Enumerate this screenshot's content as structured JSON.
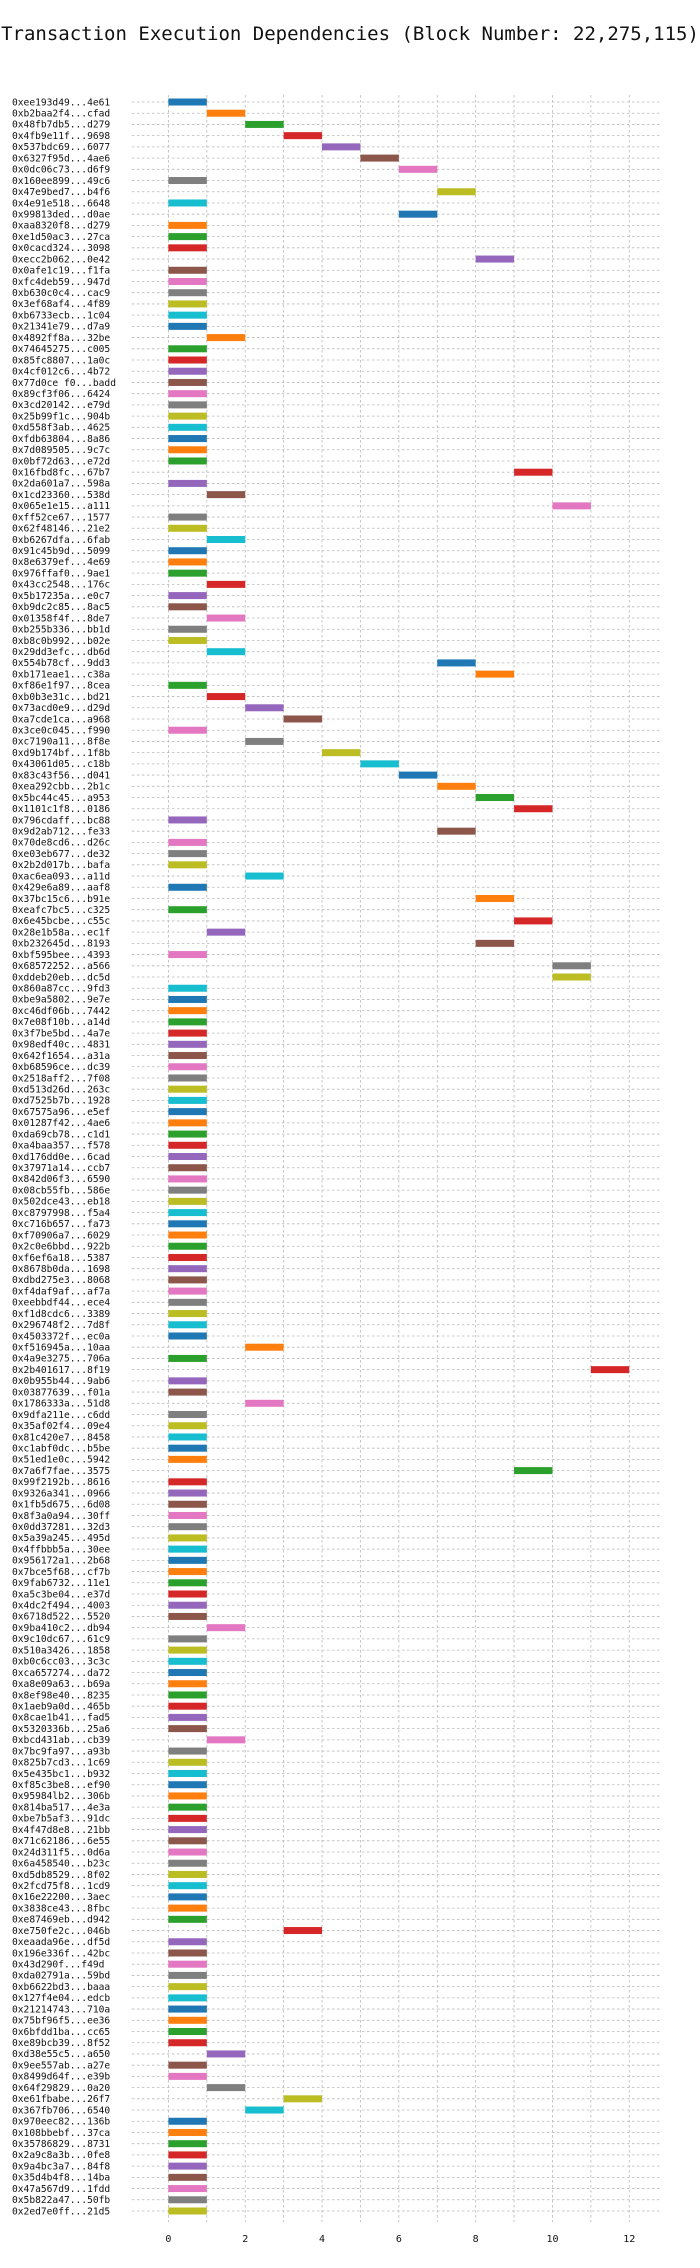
{
  "chart_data": {
    "type": "bar",
    "orientation": "horizontal-gantt",
    "title": "Transaction Execution Dependencies (Block Number: 22,275,115)",
    "xlabel": "",
    "ylabel": "",
    "xlim": [
      -1,
      12.8
    ],
    "xticks": [
      0,
      2,
      4,
      6,
      8,
      10,
      12
    ],
    "grid": true,
    "palette": [
      "#1f77b4",
      "#ff7f0e",
      "#2ca02c",
      "#d62728",
      "#9467bd",
      "#8c564b",
      "#e377c2",
      "#7f7f7f",
      "#bcbd22",
      "#17becf"
    ],
    "rows": [
      {
        "label": "0xee193d49...4e61",
        "start": 0,
        "end": 1
      },
      {
        "label": "0xb2baa2f4...cfad",
        "start": 1,
        "end": 2
      },
      {
        "label": "0x48fb7db5...d279",
        "start": 2,
        "end": 3
      },
      {
        "label": "0x4fb9e11f...9698",
        "start": 3,
        "end": 4
      },
      {
        "label": "0x537bdc69...6077",
        "start": 4,
        "end": 5
      },
      {
        "label": "0x6327f95d...4ae6",
        "start": 5,
        "end": 6
      },
      {
        "label": "0x0dc06c73...d6f9",
        "start": 6,
        "end": 7
      },
      {
        "label": "0x160ee899...49c6",
        "start": 0,
        "end": 1
      },
      {
        "label": "0x47e9bed7...b4f6",
        "start": 7,
        "end": 8
      },
      {
        "label": "0x4e91e518...6648",
        "start": 0,
        "end": 1
      },
      {
        "label": "0x99813ded...d0ae",
        "start": 6,
        "end": 7
      },
      {
        "label": "0xaa8320f8...d279",
        "start": 0,
        "end": 1
      },
      {
        "label": "0xe1d50ac3...27ca",
        "start": 0,
        "end": 1
      },
      {
        "label": "0x0cacd324...3098",
        "start": 0,
        "end": 1
      },
      {
        "label": "0xecc2b062...0e42",
        "start": 8,
        "end": 9
      },
      {
        "label": "0x0afe1c19...f1fa",
        "start": 0,
        "end": 1
      },
      {
        "label": "0xfc4deb59...947d",
        "start": 0,
        "end": 1
      },
      {
        "label": "0xb630c0c4...cac9",
        "start": 0,
        "end": 1
      },
      {
        "label": "0x3ef68af4...4f89",
        "start": 0,
        "end": 1
      },
      {
        "label": "0xb6733ecb...1c04",
        "start": 0,
        "end": 1
      },
      {
        "label": "0x21341e79...d7a9",
        "start": 0,
        "end": 1
      },
      {
        "label": "0x4892ff8a...32be",
        "start": 1,
        "end": 2
      },
      {
        "label": "0x74645275...c005",
        "start": 0,
        "end": 1
      },
      {
        "label": "0x85fc8807...1a0c",
        "start": 0,
        "end": 1
      },
      {
        "label": "0x4cf012c6...4b72",
        "start": 0,
        "end": 1
      },
      {
        "label": "0x77d0ce f0...badd",
        "start": 0,
        "end": 1
      },
      {
        "label": "0x89cf3f06...6424",
        "start": 0,
        "end": 1
      },
      {
        "label": "0x3cd20142...e79d",
        "start": 0,
        "end": 1
      },
      {
        "label": "0x25b99f1c...904b",
        "start": 0,
        "end": 1
      },
      {
        "label": "0xd558f3ab...4625",
        "start": 0,
        "end": 1
      },
      {
        "label": "0xfdb63804...8a86",
        "start": 0,
        "end": 1
      },
      {
        "label": "0x7d089505...9c7c",
        "start": 0,
        "end": 1
      },
      {
        "label": "0x0bf72d63...e72d",
        "start": 0,
        "end": 1
      },
      {
        "label": "0x16fbd8fc...67b7",
        "start": 9,
        "end": 10
      },
      {
        "label": "0x2da601a7...598a",
        "start": 0,
        "end": 1
      },
      {
        "label": "0x1cd23360...538d",
        "start": 1,
        "end": 2
      },
      {
        "label": "0x065e1e15...a111",
        "start": 10,
        "end": 11
      },
      {
        "label": "0xff52ce67...1577",
        "start": 0,
        "end": 1
      },
      {
        "label": "0x62f48146...21e2",
        "start": 0,
        "end": 1
      },
      {
        "label": "0xb6267dfa...6fab",
        "start": 1,
        "end": 2
      },
      {
        "label": "0x91c45b9d...5099",
        "start": 0,
        "end": 1
      },
      {
        "label": "0x8e6379ef...4e69",
        "start": 0,
        "end": 1
      },
      {
        "label": "0x976ffaf0...9ae1",
        "start": 0,
        "end": 1
      },
      {
        "label": "0x43cc2548...176c",
        "start": 1,
        "end": 2
      },
      {
        "label": "0x5b17235a...e0c7",
        "start": 0,
        "end": 1
      },
      {
        "label": "0xb9dc2c85...8ac5",
        "start": 0,
        "end": 1
      },
      {
        "label": "0x01358f4f...8de7",
        "start": 1,
        "end": 2
      },
      {
        "label": "0xb255b336...bb1d",
        "start": 0,
        "end": 1
      },
      {
        "label": "0xb8c0b992...b02e",
        "start": 0,
        "end": 1
      },
      {
        "label": "0x29dd3efc...db6d",
        "start": 1,
        "end": 2
      },
      {
        "label": "0x554b78cf...9dd3",
        "start": 7,
        "end": 8
      },
      {
        "label": "0xb171eae1...c38a",
        "start": 8,
        "end": 9
      },
      {
        "label": "0xf86e1f97...8cea",
        "start": 0,
        "end": 1
      },
      {
        "label": "0xb0b3e31c...bd21",
        "start": 1,
        "end": 2
      },
      {
        "label": "0x73acd0e9...d29d",
        "start": 2,
        "end": 3
      },
      {
        "label": "0xa7cde1ca...a968",
        "start": 3,
        "end": 4
      },
      {
        "label": "0x3ce0c045...f990",
        "start": 0,
        "end": 1
      },
      {
        "label": "0xc7190a11...8f8e",
        "start": 2,
        "end": 3
      },
      {
        "label": "0xd9b174bf...1f8b",
        "start": 4,
        "end": 5
      },
      {
        "label": "0x43061d05...c18b",
        "start": 5,
        "end": 6
      },
      {
        "label": "0x83c43f56...d041",
        "start": 6,
        "end": 7
      },
      {
        "label": "0xea292cbb...2b1c",
        "start": 7,
        "end": 8
      },
      {
        "label": "0x5bc44c45...a953",
        "start": 8,
        "end": 9
      },
      {
        "label": "0x1101c1f8...0186",
        "start": 9,
        "end": 10
      },
      {
        "label": "0x796cdaff...bc88",
        "start": 0,
        "end": 1
      },
      {
        "label": "0x9d2ab712...fe33",
        "start": 7,
        "end": 8
      },
      {
        "label": "0x70de8cd6...d26c",
        "start": 0,
        "end": 1
      },
      {
        "label": "0xe03eb677...de32",
        "start": 0,
        "end": 1
      },
      {
        "label": "0x2b2d017b...bafa",
        "start": 0,
        "end": 1
      },
      {
        "label": "0xac6ea093...a11d",
        "start": 2,
        "end": 3
      },
      {
        "label": "0x429e6a89...aaf8",
        "start": 0,
        "end": 1
      },
      {
        "label": "0x37bc15c6...b91e",
        "start": 8,
        "end": 9
      },
      {
        "label": "0xeafc7bc5...c325",
        "start": 0,
        "end": 1
      },
      {
        "label": "0x6e45bcbe...c55c",
        "start": 9,
        "end": 10
      },
      {
        "label": "0x28e1b58a...ec1f",
        "start": 1,
        "end": 2
      },
      {
        "label": "0xb232645d...8193",
        "start": 8,
        "end": 9
      },
      {
        "label": "0xbf595bee...4393",
        "start": 0,
        "end": 1
      },
      {
        "label": "0x68572252...a566",
        "start": 10,
        "end": 11
      },
      {
        "label": "0xddeb20eb...dc5d",
        "start": 10,
        "end": 11
      },
      {
        "label": "0x860a87cc...9fd3",
        "start": 0,
        "end": 1
      },
      {
        "label": "0xbe9a5802...9e7e",
        "start": 0,
        "end": 1
      },
      {
        "label": "0xc46df06b...7442",
        "start": 0,
        "end": 1
      },
      {
        "label": "0x7e08f10b...a14d",
        "start": 0,
        "end": 1
      },
      {
        "label": "0x3f7be5bd...4a7e",
        "start": 0,
        "end": 1
      },
      {
        "label": "0x98edf40c...4831",
        "start": 0,
        "end": 1
      },
      {
        "label": "0x642f1654...a31a",
        "start": 0,
        "end": 1
      },
      {
        "label": "0xb68596ce...dc39",
        "start": 0,
        "end": 1
      },
      {
        "label": "0x2518aff2...7f08",
        "start": 0,
        "end": 1
      },
      {
        "label": "0xd513d26d...263c",
        "start": 0,
        "end": 1
      },
      {
        "label": "0xd7525b7b...1928",
        "start": 0,
        "end": 1
      },
      {
        "label": "0x67575a96...e5ef",
        "start": 0,
        "end": 1
      },
      {
        "label": "0x01287f42...4ae6",
        "start": 0,
        "end": 1
      },
      {
        "label": "0xda69cb78...c1d1",
        "start": 0,
        "end": 1
      },
      {
        "label": "0xa4baa357...f578",
        "start": 0,
        "end": 1
      },
      {
        "label": "0xd176dd0e...6cad",
        "start": 0,
        "end": 1
      },
      {
        "label": "0x37971a14...ccb7",
        "start": 0,
        "end": 1
      },
      {
        "label": "0x842d06f3...6590",
        "start": 0,
        "end": 1
      },
      {
        "label": "0x08cb55fb...586e",
        "start": 0,
        "end": 1
      },
      {
        "label": "0x502dce43...eb18",
        "start": 0,
        "end": 1
      },
      {
        "label": "0xc8797998...f5a4",
        "start": 0,
        "end": 1
      },
      {
        "label": "0xc716b657...fa73",
        "start": 0,
        "end": 1
      },
      {
        "label": "0xf70906a7...6029",
        "start": 0,
        "end": 1
      },
      {
        "label": "0x2c0e6bbd...922b",
        "start": 0,
        "end": 1
      },
      {
        "label": "0xf6ef6a18...5387",
        "start": 0,
        "end": 1
      },
      {
        "label": "0x8678b0da...1698",
        "start": 0,
        "end": 1
      },
      {
        "label": "0xdbd275e3...8068",
        "start": 0,
        "end": 1
      },
      {
        "label": "0xf4daf9af...af7a",
        "start": 0,
        "end": 1
      },
      {
        "label": "0xeebbdf44...ece4",
        "start": 0,
        "end": 1
      },
      {
        "label": "0xf1d8cdc6...3389",
        "start": 0,
        "end": 1
      },
      {
        "label": "0x296748f2...7d8f",
        "start": 0,
        "end": 1
      },
      {
        "label": "0x4503372f...ec0a",
        "start": 0,
        "end": 1
      },
      {
        "label": "0xf516945a...10aa",
        "start": 2,
        "end": 3
      },
      {
        "label": "0x4a9e3275...706a",
        "start": 0,
        "end": 1
      },
      {
        "label": "0x2b401617...8f19",
        "start": 11,
        "end": 12
      },
      {
        "label": "0x0b955b44...9ab6",
        "start": 0,
        "end": 1
      },
      {
        "label": "0x03877639...f01a",
        "start": 0,
        "end": 1
      },
      {
        "label": "0x1786333a...51d8",
        "start": 2,
        "end": 3
      },
      {
        "label": "0x9dfa211e...c6dd",
        "start": 0,
        "end": 1
      },
      {
        "label": "0x35af02f4...09e4",
        "start": 0,
        "end": 1
      },
      {
        "label": "0x81c420e7...8458",
        "start": 0,
        "end": 1
      },
      {
        "label": "0xc1abf0dc...b5be",
        "start": 0,
        "end": 1
      },
      {
        "label": "0x51ed1e0c...5942",
        "start": 0,
        "end": 1
      },
      {
        "label": "0x7a6f7fae...3575",
        "start": 9,
        "end": 10
      },
      {
        "label": "0x99f2192b...8616",
        "start": 0,
        "end": 1
      },
      {
        "label": "0x9326a341...0966",
        "start": 0,
        "end": 1
      },
      {
        "label": "0x1fb5d675...6d08",
        "start": 0,
        "end": 1
      },
      {
        "label": "0x8f3a0a94...30ff",
        "start": 0,
        "end": 1
      },
      {
        "label": "0x0dd37281...32d3",
        "start": 0,
        "end": 1
      },
      {
        "label": "0x5a39a245...495d",
        "start": 0,
        "end": 1
      },
      {
        "label": "0x4ffbbb5a...30ee",
        "start": 0,
        "end": 1
      },
      {
        "label": "0x956172a1...2b68",
        "start": 0,
        "end": 1
      },
      {
        "label": "0x7bce5f68...cf7b",
        "start": 0,
        "end": 1
      },
      {
        "label": "0x9fab6732...11e1",
        "start": 0,
        "end": 1
      },
      {
        "label": "0xa5c3be04...e37d",
        "start": 0,
        "end": 1
      },
      {
        "label": "0x4dc2f494...4003",
        "start": 0,
        "end": 1
      },
      {
        "label": "0x6718d522...5520",
        "start": 0,
        "end": 1
      },
      {
        "label": "0x9ba410c2...db94",
        "start": 1,
        "end": 2
      },
      {
        "label": "0x9c10dc67...61c9",
        "start": 0,
        "end": 1
      },
      {
        "label": "0x510a3426...1858",
        "start": 0,
        "end": 1
      },
      {
        "label": "0xb0c6cc03...3c3c",
        "start": 0,
        "end": 1
      },
      {
        "label": "0xca657274...da72",
        "start": 0,
        "end": 1
      },
      {
        "label": "0xa8e09a63...b69a",
        "start": 0,
        "end": 1
      },
      {
        "label": "0x8ef98e40...8235",
        "start": 0,
        "end": 1
      },
      {
        "label": "0x1aeb9a0d...465b",
        "start": 0,
        "end": 1
      },
      {
        "label": "0x8cae1b41...fad5",
        "start": 0,
        "end": 1
      },
      {
        "label": "0x5320336b...25a6",
        "start": 0,
        "end": 1
      },
      {
        "label": "0xbcd431ab...cb39",
        "start": 1,
        "end": 2
      },
      {
        "label": "0x7bc9fa97...a93b",
        "start": 0,
        "end": 1
      },
      {
        "label": "0x825b7cd3...1c69",
        "start": 0,
        "end": 1
      },
      {
        "label": "0x5e435bc1...b932",
        "start": 0,
        "end": 1
      },
      {
        "label": "0xf85c3be8...ef90",
        "start": 0,
        "end": 1
      },
      {
        "label": "0x95984lb2...306b",
        "start": 0,
        "end": 1
      },
      {
        "label": "0x814ba517...4e3a",
        "start": 0,
        "end": 1
      },
      {
        "label": "0xbe7b5af3...91dc",
        "start": 0,
        "end": 1
      },
      {
        "label": "0x4f47d8e8...21bb",
        "start": 0,
        "end": 1
      },
      {
        "label": "0x71c62186...6e55",
        "start": 0,
        "end": 1
      },
      {
        "label": "0x24d311f5...0d6a",
        "start": 0,
        "end": 1
      },
      {
        "label": "0x6a458540...b23c",
        "start": 0,
        "end": 1
      },
      {
        "label": "0xd5db8529...8f02",
        "start": 0,
        "end": 1
      },
      {
        "label": "0x2fcd75f8...1cd9",
        "start": 0,
        "end": 1
      },
      {
        "label": "0x16e22200...3aec",
        "start": 0,
        "end": 1
      },
      {
        "label": "0x3838ce43...8fbc",
        "start": 0,
        "end": 1
      },
      {
        "label": "0xe87469eb...d942",
        "start": 0,
        "end": 1
      },
      {
        "label": "0xe750fe2c...046b",
        "start": 3,
        "end": 4
      },
      {
        "label": "0xeaada96e...df5d",
        "start": 0,
        "end": 1
      },
      {
        "label": "0x196e336f...42bc",
        "start": 0,
        "end": 1
      },
      {
        "label": "0x43d290f...f49d",
        "start": 0,
        "end": 1
      },
      {
        "label": "0xda02791a...59bd",
        "start": 0,
        "end": 1
      },
      {
        "label": "0xb6622bd3...baaa",
        "start": 0,
        "end": 1
      },
      {
        "label": "0x127f4e04...edcb",
        "start": 0,
        "end": 1
      },
      {
        "label": "0x21214743...710a",
        "start": 0,
        "end": 1
      },
      {
        "label": "0x75bf96f5...ee36",
        "start": 0,
        "end": 1
      },
      {
        "label": "0x6bfdd1ba...cc65",
        "start": 0,
        "end": 1
      },
      {
        "label": "0xe89bcb39...8f52",
        "start": 0,
        "end": 1
      },
      {
        "label": "0xd38e55c5...a650",
        "start": 1,
        "end": 2
      },
      {
        "label": "0x9ee557ab...a27e",
        "start": 0,
        "end": 1
      },
      {
        "label": "0x8499d64f...e39b",
        "start": 0,
        "end": 1
      },
      {
        "label": "0x64f29829...0a20",
        "start": 1,
        "end": 2
      },
      {
        "label": "0xe61fbabe...26f7",
        "start": 3,
        "end": 4
      },
      {
        "label": "0x367fb706...6540",
        "start": 2,
        "end": 3
      },
      {
        "label": "0x970eec82...136b",
        "start": 0,
        "end": 1
      },
      {
        "label": "0x108bbebf...37ca",
        "start": 0,
        "end": 1
      },
      {
        "label": "0x35786829...8731",
        "start": 0,
        "end": 1
      },
      {
        "label": "0x2a9c8a3b...0fe8",
        "start": 0,
        "end": 1
      },
      {
        "label": "0x9a4bc3a7...84f8",
        "start": 0,
        "end": 1
      },
      {
        "label": "0x35d4b4f8...14ba",
        "start": 0,
        "end": 1
      },
      {
        "label": "0x47a567d9...1fdd",
        "start": 0,
        "end": 1
      },
      {
        "label": "0x5b822a47...50fb",
        "start": 0,
        "end": 1
      },
      {
        "label": "0x2ed7e0ff...21d5",
        "start": 0,
        "end": 1
      }
    ]
  }
}
